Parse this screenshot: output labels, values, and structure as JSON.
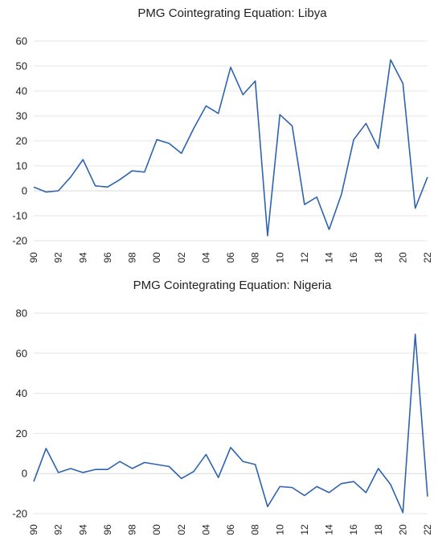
{
  "chart_data": [
    {
      "type": "line",
      "title": "PMG Cointegrating Equation: Libya",
      "xlabel": "",
      "ylabel": "",
      "ylim": [
        -20,
        60
      ],
      "yticks": [
        "60",
        "50",
        "40",
        "30",
        "20",
        "10",
        "0",
        "-10",
        "-20"
      ],
      "xticks": [
        "90",
        "92",
        "94",
        "96",
        "98",
        "00",
        "02",
        "04",
        "06",
        "08",
        "10",
        "12",
        "14",
        "16",
        "18",
        "20",
        "22"
      ],
      "grid": true,
      "x": [
        1990,
        1991,
        1992,
        1993,
        1994,
        1995,
        1996,
        1997,
        1998,
        1999,
        2000,
        2001,
        2002,
        2003,
        2004,
        2005,
        2006,
        2007,
        2008,
        2009,
        2010,
        2011,
        2012,
        2013,
        2014,
        2015,
        2016,
        2017,
        2018,
        2019,
        2020,
        2021,
        2022
      ],
      "series": [
        {
          "name": "",
          "values": [
            1.5,
            -0.5,
            0,
            5.5,
            12.5,
            2,
            1.5,
            4.5,
            8,
            7.5,
            20.5,
            19,
            15,
            25,
            34,
            31,
            49.5,
            38.5,
            44,
            -18,
            30.5,
            26,
            -5.5,
            -2.5,
            -15.5,
            -1.5,
            20.5,
            27,
            17,
            52.5,
            43,
            -7,
            5.5
          ]
        }
      ]
    },
    {
      "type": "line",
      "title": "PMG Cointegrating Equation: Nigeria",
      "xlabel": "",
      "ylabel": "",
      "ylim": [
        -20,
        80
      ],
      "yticks": [
        "80",
        "60",
        "40",
        "20",
        "0",
        "-20"
      ],
      "xticks": [
        "90",
        "92",
        "94",
        "96",
        "98",
        "00",
        "02",
        "04",
        "06",
        "08",
        "10",
        "12",
        "14",
        "16",
        "18",
        "20",
        "22"
      ],
      "grid": true,
      "x": [
        1990,
        1991,
        1992,
        1993,
        1994,
        1995,
        1996,
        1997,
        1998,
        1999,
        2000,
        2001,
        2002,
        2003,
        2004,
        2005,
        2006,
        2007,
        2008,
        2009,
        2010,
        2011,
        2012,
        2013,
        2014,
        2015,
        2016,
        2017,
        2018,
        2019,
        2020,
        2021,
        2022
      ],
      "series": [
        {
          "name": "",
          "values": [
            -4,
            12.5,
            0.5,
            2.5,
            0.5,
            2,
            2,
            6,
            2.5,
            5.5,
            4.5,
            3.5,
            -2.5,
            1,
            9.5,
            -2,
            13,
            6,
            4.5,
            -16.5,
            -6.5,
            -7,
            -11,
            -6.5,
            -9.5,
            -5,
            -4,
            -9.5,
            2.5,
            -5.5,
            -19.5,
            69.5,
            -11.5
          ]
        }
      ]
    }
  ]
}
